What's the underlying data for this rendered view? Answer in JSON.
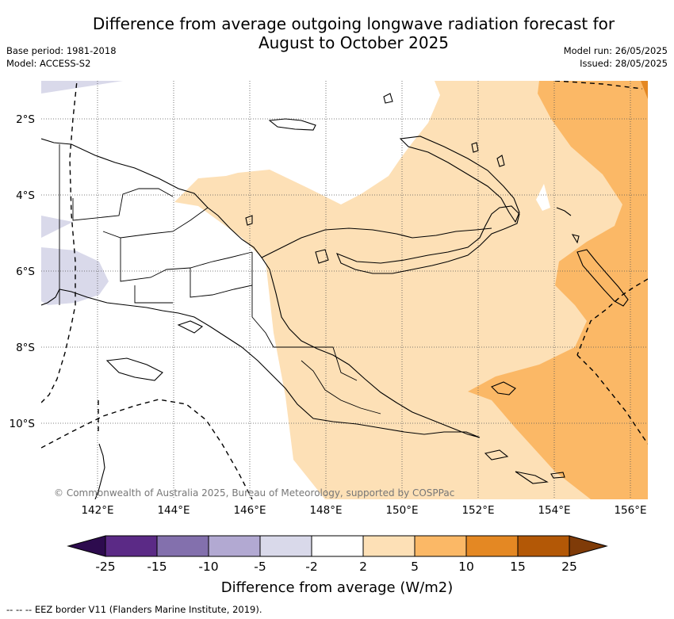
{
  "title_line1": "Difference from average outgoing longwave radiation forecast for",
  "title_line2": "August to October 2025",
  "meta": {
    "base_period": "Base period: 1981-2018",
    "model": "Model: ACCESS-S2",
    "model_run": "Model run: 26/05/2025",
    "issued": "Issued: 28/05/2025"
  },
  "map": {
    "lat_labels": [
      "2°S",
      "4°S",
      "6°S",
      "8°S",
      "10°S"
    ],
    "lon_labels": [
      "142°E",
      "144°E",
      "146°E",
      "148°E",
      "150°E",
      "152°E",
      "154°E",
      "156°E"
    ],
    "copyright": "© Commonwealth of Australia 2025, Bureau of Meteorology, supported by COSPPac"
  },
  "colorbar": {
    "tick_labels": [
      "-25",
      "-15",
      "-10",
      "-5",
      "-2",
      "2",
      "5",
      "10",
      "15",
      "25"
    ],
    "colors": [
      "#2d0b4e",
      "#5b2a86",
      "#8370ad",
      "#b2a9d2",
      "#d9d9ea",
      "#ffffff",
      "#fde0b6",
      "#fbb866",
      "#e48823",
      "#b35806",
      "#7f3b08"
    ],
    "title": "Difference from average (W/m2)"
  },
  "legend_note": "-- -- -- EEZ border V11 (Flanders Marine Institute, 2019)."
}
